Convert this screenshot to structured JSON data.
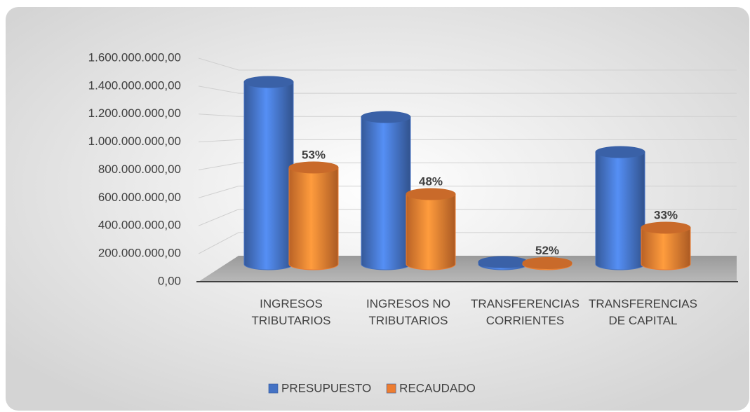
{
  "chart_data": {
    "type": "bar3d",
    "categories": [
      "INGRESOS TRIBUTARIOS",
      "INGRESOS NO TRIBUTARIOS",
      "TRANSFERENCIAS CORRIENTES",
      "TRANSFERENCIAS DE CAPITAL"
    ],
    "series": [
      {
        "name": "PRESUPUESTO",
        "color": "#4472c4",
        "values": [
          1300000000,
          1050000000,
          15000000,
          800000000
        ]
      },
      {
        "name": "RECAUDADO",
        "color": "#ed7d31",
        "values": [
          690000000,
          500000000,
          7800000,
          260000000
        ]
      }
    ],
    "percent_labels": [
      "53%",
      "48%",
      "52%",
      "33%"
    ],
    "ylim": [
      0,
      1600000000
    ],
    "yticks": [
      {
        "value": 0,
        "label": "0,00"
      },
      {
        "value": 200000000,
        "label": "200.000.000,00"
      },
      {
        "value": 400000000,
        "label": "400.000.000,00"
      },
      {
        "value": 600000000,
        "label": "600.000.000,00"
      },
      {
        "value": 800000000,
        "label": "800.000.000,00"
      },
      {
        "value": 1000000000,
        "label": "1.000.000.000,00"
      },
      {
        "value": 1200000000,
        "label": "1.200.000.000,00"
      },
      {
        "value": 1400000000,
        "label": "1.400.000.000,00"
      },
      {
        "value": 1600000000,
        "label": "1.600.000.000,00"
      }
    ],
    "grid": true,
    "legend": "bottom"
  }
}
